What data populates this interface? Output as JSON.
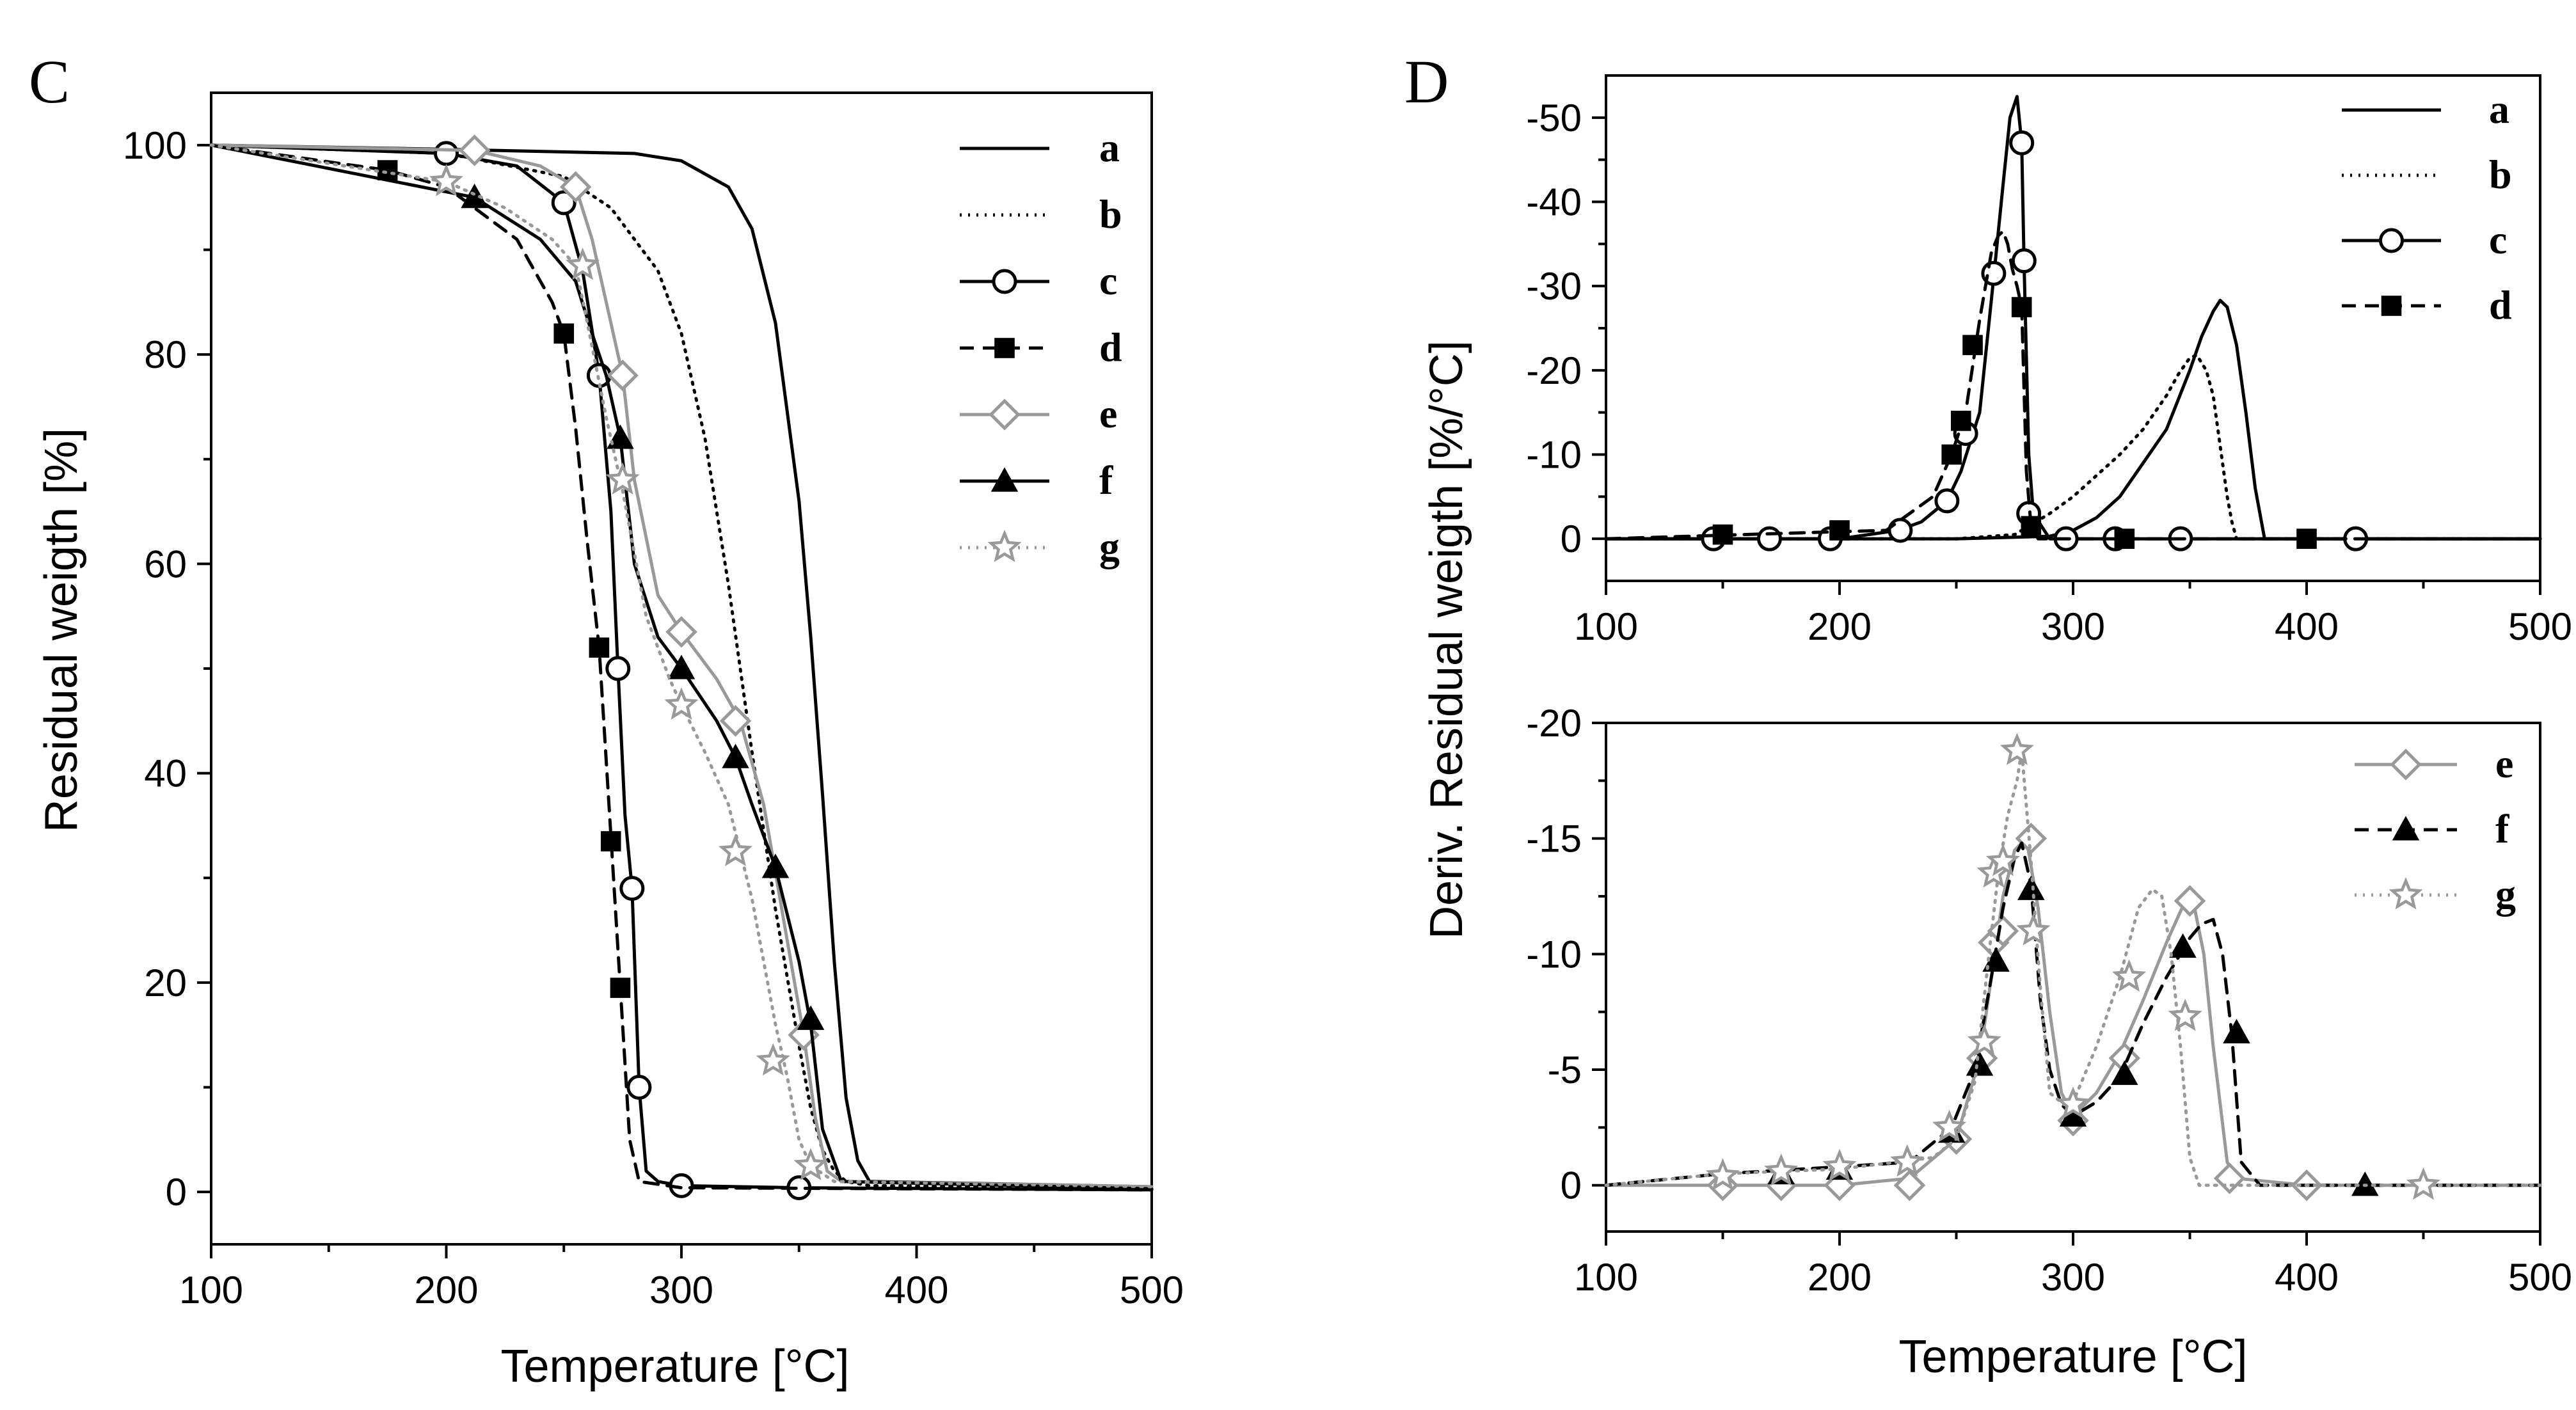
{
  "chart_data": [
    {
      "type": "line",
      "panel_label": "C",
      "xlabel": "Temperature [°C]",
      "ylabel": "Residual weigth [%]",
      "xlim": [
        100,
        500
      ],
      "ylim": [
        -5,
        105
      ],
      "xticks": [
        100,
        200,
        300,
        400,
        500
      ],
      "yticks": [
        0,
        20,
        40,
        60,
        80,
        100
      ],
      "legend_position": "top-right",
      "series": [
        {
          "name": "a",
          "color": "#000000",
          "dash": "solid",
          "marker": "none",
          "x": [
            100,
            200,
            280,
            300,
            320,
            330,
            340,
            350,
            355,
            360,
            365,
            370,
            375,
            380,
            500
          ],
          "y": [
            100,
            99.6,
            99.2,
            98.5,
            96,
            92,
            83,
            66,
            53,
            38,
            22,
            9,
            3,
            1,
            0.5
          ]
        },
        {
          "name": "b",
          "color": "#000000",
          "dash": "dotted",
          "marker": "none",
          "x": [
            100,
            200,
            250,
            270,
            290,
            300,
            310,
            320,
            330,
            340,
            350,
            355,
            360,
            365,
            370,
            380,
            500
          ],
          "y": [
            100,
            99.2,
            97,
            94,
            88,
            82,
            72,
            58,
            42,
            27,
            14,
            8,
            4,
            2,
            1,
            0.6,
            0.3
          ]
        },
        {
          "name": "c",
          "color": "#000000",
          "dash": "solid",
          "marker": "circle",
          "x": [
            100,
            200,
            230,
            250,
            258,
            265,
            270,
            273,
            276,
            279,
            282,
            285,
            290,
            300,
            350,
            500
          ],
          "y": [
            100,
            99.2,
            98,
            94.5,
            88,
            78,
            65,
            50,
            36,
            29,
            10,
            2,
            1,
            0.6,
            0.4,
            0.2
          ],
          "marker_x": [
            200,
            250,
            265,
            273,
            279,
            282,
            300,
            350
          ],
          "marker_y": [
            99.2,
            94.5,
            78,
            50,
            29,
            10,
            0.6,
            0.4
          ]
        },
        {
          "name": "d",
          "color": "#000000",
          "dash": "dashed",
          "marker": "square",
          "x": [
            100,
            175,
            200,
            230,
            245,
            250,
            255,
            260,
            265,
            270,
            274,
            278,
            282,
            300,
            500
          ],
          "y": [
            100,
            97.6,
            96,
            91,
            85,
            82,
            73,
            62,
            52,
            34,
            19.5,
            5,
            1,
            0.4,
            0.2
          ],
          "marker_x": [
            175,
            250,
            265,
            270,
            274
          ],
          "marker_y": [
            97.6,
            82,
            52,
            33.5,
            19.5
          ]
        },
        {
          "name": "e",
          "color": "#999999",
          "dash": "solid",
          "marker": "diamond",
          "x": [
            100,
            212,
            240,
            255,
            262,
            270,
            275,
            280,
            290,
            300,
            315,
            325,
            335,
            345,
            352,
            357,
            362,
            368,
            500
          ],
          "y": [
            100,
            99.5,
            98,
            96,
            91,
            83,
            78,
            68,
            57,
            53.5,
            49,
            45,
            37,
            24,
            15,
            7,
            2,
            1,
            0.5
          ],
          "marker_x": [
            212,
            255,
            275,
            300,
            323,
            352
          ],
          "marker_y": [
            99.5,
            96,
            78,
            53.5,
            45,
            15
          ]
        },
        {
          "name": "f",
          "color": "#000000",
          "dash": "solid",
          "marker": "triangle",
          "x": [
            100,
            212,
            240,
            255,
            262,
            268,
            274,
            280,
            290,
            300,
            315,
            323,
            330,
            340,
            350,
            355,
            360,
            368,
            500
          ],
          "y": [
            100,
            95,
            91,
            87,
            82,
            78,
            72,
            60,
            53,
            50,
            45,
            41.5,
            37,
            31,
            22,
            16,
            6,
            1,
            0.3
          ],
          "marker_x": [
            212,
            274,
            300,
            323,
            340,
            355
          ],
          "marker_y": [
            95,
            72,
            50,
            41.5,
            31,
            16.5
          ]
        },
        {
          "name": "g",
          "color": "#999999",
          "dash": "dotted",
          "marker": "star",
          "x": [
            100,
            200,
            225,
            245,
            255,
            260,
            268,
            275,
            285,
            295,
            300,
            310,
            320,
            325,
            330,
            335,
            340,
            345,
            350,
            355,
            365,
            500
          ],
          "y": [
            100,
            96.5,
            94,
            91,
            88.5,
            83,
            74,
            67,
            55,
            49,
            46.5,
            42,
            37,
            32.5,
            28,
            22,
            16,
            11,
            5,
            2.5,
            1,
            0.5
          ],
          "marker_x": [
            200,
            258,
            275,
            300,
            323,
            339,
            355
          ],
          "marker_y": [
            96.5,
            88.5,
            68,
            46.5,
            32.5,
            12.5,
            2.5
          ]
        }
      ]
    },
    {
      "type": "line",
      "panel_label": "D",
      "xlabel": "",
      "ylabel": "",
      "xlim": [
        100,
        500
      ],
      "ylim": [
        5,
        -55
      ],
      "xticks": [
        100,
        200,
        300,
        400,
        500
      ],
      "yticks": [
        0,
        -10,
        -20,
        -30,
        -40,
        -50
      ],
      "legend_position": "top-right",
      "series": [
        {
          "name": "a",
          "color": "#000000",
          "dash": "solid",
          "marker": "none",
          "x": [
            100,
            250,
            290,
            300,
            310,
            320,
            330,
            340,
            350,
            355,
            360,
            363,
            366,
            370,
            374,
            378,
            382,
            500
          ],
          "y": [
            0,
            0,
            -0.3,
            -1,
            -2.5,
            -5,
            -9,
            -13,
            -20,
            -24,
            -27,
            -28.3,
            -27.5,
            -23,
            -15,
            -6,
            0,
            0
          ]
        },
        {
          "name": "b",
          "color": "#000000",
          "dash": "dotted",
          "marker": "none",
          "x": [
            100,
            250,
            275,
            290,
            300,
            310,
            320,
            330,
            340,
            345,
            350,
            353,
            357,
            360,
            363,
            366,
            368,
            370,
            500
          ],
          "y": [
            0,
            0,
            -0.5,
            -3,
            -5,
            -7.5,
            -10,
            -13,
            -17,
            -19.5,
            -21.5,
            -21.8,
            -20,
            -17,
            -11,
            -5,
            -2,
            0,
            0
          ]
        },
        {
          "name": "c",
          "color": "#000000",
          "dash": "solid",
          "marker": "circle",
          "x": [
            100,
            200,
            225,
            235,
            246,
            252,
            260,
            266,
            270,
            273,
            276,
            278,
            279,
            281,
            283,
            290,
            500
          ],
          "y": [
            0,
            0,
            -1,
            -2,
            -4.5,
            -8,
            -15,
            -31,
            -42,
            -50,
            -52.5,
            -47,
            -33,
            -10,
            -3,
            0,
            0
          ],
          "marker_x": [
            146,
            170,
            196,
            226,
            246,
            254,
            266,
            278,
            279,
            281,
            297,
            318,
            346,
            421
          ],
          "marker_y": [
            0,
            0,
            0,
            -1,
            -4.5,
            -12.5,
            -31.5,
            -47,
            -33,
            -3,
            0,
            0,
            0,
            0
          ]
        },
        {
          "name": "d",
          "color": "#000000",
          "dash": "dashed",
          "marker": "square",
          "x": [
            100,
            195,
            220,
            240,
            248,
            254,
            260,
            265,
            268,
            270,
            272,
            274,
            276,
            278,
            280,
            282,
            285,
            500
          ],
          "y": [
            0,
            -0.8,
            -1,
            -5,
            -10,
            -15,
            -26,
            -34,
            -36,
            -36.5,
            -35,
            -32,
            -30,
            -27.5,
            -8,
            -1.5,
            0,
            0
          ],
          "marker_x": [
            150,
            200,
            248,
            252,
            257,
            278,
            282,
            322,
            400
          ],
          "marker_y": [
            -0.5,
            -1,
            -10,
            -14,
            -23,
            -27.5,
            -1.5,
            0,
            0
          ]
        }
      ]
    },
    {
      "type": "line",
      "panel_label": "",
      "xlabel": "Temperature [°C]",
      "ylabel": "Deriv. Residual weigth [%/°C]",
      "ylabel_note": "shared by both D panels",
      "xlim": [
        100,
        500
      ],
      "ylim": [
        2,
        -20
      ],
      "xticks": [
        100,
        200,
        300,
        400,
        500
      ],
      "yticks": [
        0,
        -5,
        -10,
        -15,
        -20
      ],
      "legend_position": "top-right",
      "series": [
        {
          "name": "e",
          "color": "#999999",
          "dash": "solid",
          "marker": "diamond",
          "x": [
            100,
            150,
            175,
            200,
            230,
            250,
            260,
            265,
            270,
            275,
            280,
            285,
            290,
            295,
            300,
            310,
            320,
            330,
            340,
            348,
            352,
            356,
            360,
            366,
            370,
            400,
            500
          ],
          "y": [
            0,
            0,
            0,
            0,
            -0.3,
            -2,
            -5.5,
            -9,
            -12.5,
            -14.5,
            -15,
            -12,
            -7.5,
            -4,
            -3,
            -4,
            -5.7,
            -8,
            -10.5,
            -12.3,
            -12,
            -10,
            -6,
            -1,
            -0.3,
            0,
            0
          ],
          "marker_x": [
            150,
            175,
            200,
            230,
            250,
            261,
            266,
            270,
            282,
            300,
            322,
            350,
            367,
            400
          ],
          "marker_y": [
            0,
            0,
            0,
            0,
            -2,
            -5.5,
            -10.5,
            -11,
            -15,
            -2.8,
            -5.5,
            -12.3,
            -0.3,
            0
          ]
        },
        {
          "name": "f",
          "color": "#000000",
          "dash": "dashed",
          "marker": "triangle",
          "x": [
            100,
            150,
            200,
            230,
            248,
            258,
            265,
            270,
            275,
            278,
            282,
            286,
            290,
            295,
            300,
            310,
            320,
            330,
            340,
            350,
            355,
            360,
            364,
            368,
            372,
            380,
            500
          ],
          "y": [
            0,
            -0.5,
            -0.8,
            -1,
            -2.5,
            -5,
            -9,
            -12,
            -14.2,
            -14.8,
            -13,
            -8,
            -5,
            -3.5,
            -3,
            -3.6,
            -4.7,
            -7,
            -9,
            -10.7,
            -11.3,
            -11.5,
            -10,
            -6.5,
            -1,
            0,
            0
          ],
          "marker_x": [
            175,
            200,
            248,
            260,
            267,
            282,
            300,
            322,
            347,
            370,
            425
          ],
          "marker_y": [
            -0.5,
            -0.7,
            -2.3,
            -5.2,
            -9.7,
            -12.8,
            -3,
            -4.8,
            -10.3,
            -6.6,
            0
          ]
        },
        {
          "name": "g",
          "color": "#999999",
          "dash": "dotted",
          "marker": "star",
          "x": [
            100,
            150,
            200,
            240,
            250,
            258,
            264,
            268,
            272,
            276,
            278,
            282,
            286,
            290,
            296,
            300,
            310,
            320,
            328,
            334,
            338,
            342,
            346,
            350,
            354,
            500
          ],
          "y": [
            0,
            -0.5,
            -0.7,
            -1.2,
            -2,
            -4.5,
            -10,
            -13.5,
            -16,
            -17.5,
            -18.8,
            -14,
            -8.5,
            -4,
            -3.5,
            -3.6,
            -6,
            -9,
            -12,
            -12.8,
            -12.5,
            -10,
            -6,
            -1.2,
            0,
            0
          ],
          "marker_x": [
            150,
            175,
            200,
            229,
            247,
            262,
            266,
            270,
            276,
            283,
            300,
            324,
            348,
            450
          ],
          "marker_y": [
            -0.4,
            -0.6,
            -0.8,
            -1,
            -2.5,
            -6.2,
            -13.5,
            -14,
            -18.8,
            -11,
            -3.5,
            -9,
            -7.3,
            0
          ]
        }
      ]
    }
  ]
}
